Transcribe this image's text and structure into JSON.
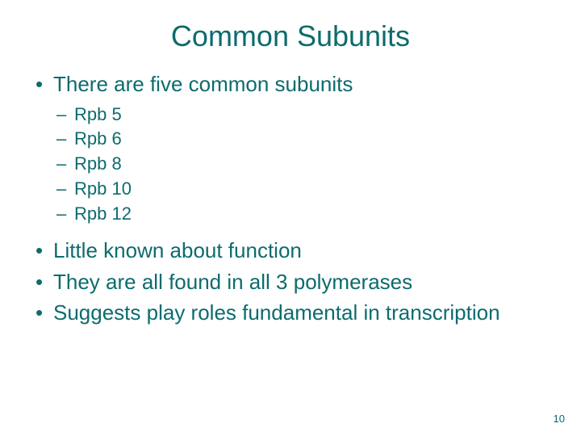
{
  "colors": {
    "text": "#0d6b6e",
    "background": "#ffffff"
  },
  "title": "Common Subunits",
  "bullets": {
    "intro": "There are five common subunits",
    "subs": [
      "Rpb 5",
      "Rpb 6",
      "Rpb 8",
      "Rpb 10",
      "Rpb 12"
    ],
    "points": [
      "Little known about function",
      "They are all found in all 3 polymerases",
      "Suggests play roles fundamental in transcription"
    ]
  },
  "pageNumber": "10",
  "typography": {
    "title_fontsize": 36,
    "bullet_main_fontsize": 26,
    "bullet_sub_fontsize": 22,
    "page_number_fontsize": 13
  }
}
